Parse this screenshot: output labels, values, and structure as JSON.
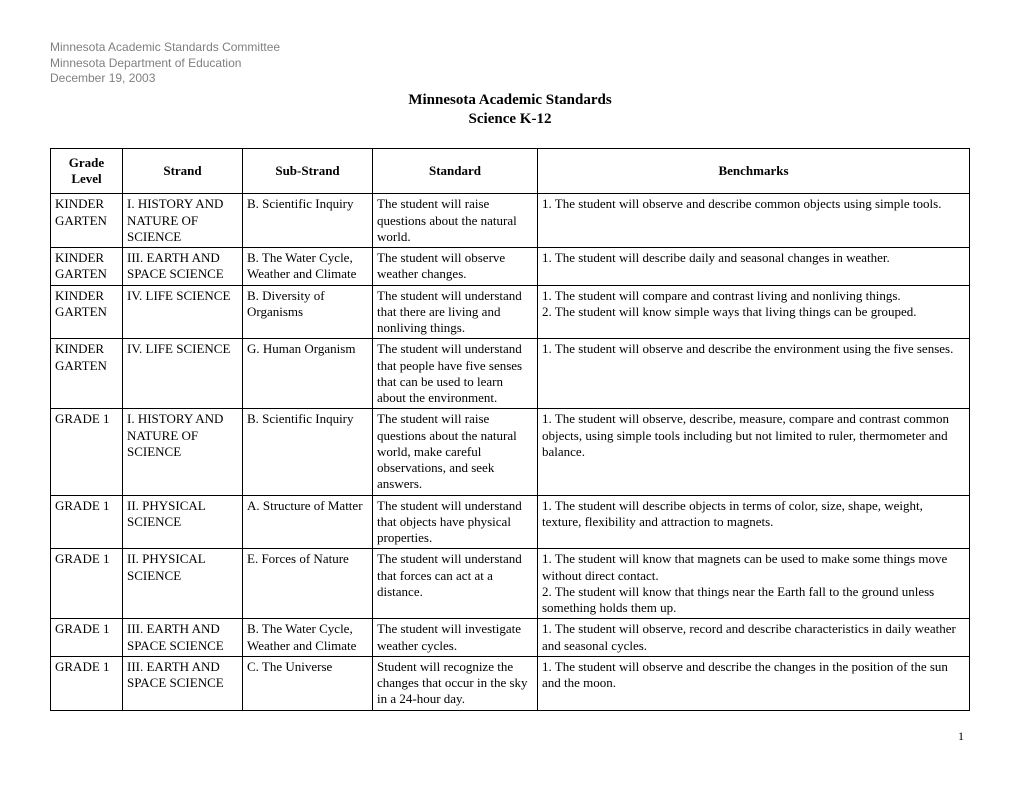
{
  "header": {
    "line1": "Minnesota Academic Standards Committee",
    "line2": "Minnesota Department of Education",
    "line3": "December 19, 2003"
  },
  "title": {
    "line1": "Minnesota Academic Standards",
    "line2": "Science K-12"
  },
  "columns": {
    "grade": "Grade Level",
    "strand": "Strand",
    "substrand": "Sub-Strand",
    "standard": "Standard",
    "benchmarks": "Benchmarks"
  },
  "rows": [
    {
      "grade": "KINDER GARTEN",
      "strand": "I. HISTORY AND NATURE OF SCIENCE",
      "substrand": "B. Scientific Inquiry",
      "standard": "The student will raise questions about the natural world.",
      "benchmarks": "1.  The student will observe and describe common objects using simple tools."
    },
    {
      "grade": "KINDER GARTEN",
      "strand": "III. EARTH AND SPACE SCIENCE",
      "substrand": "B. The Water Cycle, Weather and Climate",
      "standard": "The student will observe weather changes.",
      "benchmarks": "1.  The student will describe daily and seasonal changes in weather."
    },
    {
      "grade": "KINDER GARTEN",
      "strand": "IV. LIFE SCIENCE",
      "substrand": "B. Diversity of Organisms",
      "standard": "The student will understand that there are living and nonliving things.",
      "benchmarks": "1.  The student will compare and contrast living and nonliving things.\n2.  The student will know simple ways that living things can be grouped."
    },
    {
      "grade": "KINDER GARTEN",
      "strand": "IV. LIFE SCIENCE",
      "substrand": "G. Human Organism",
      "standard": "The student will understand that people have five senses that can be used to learn about the environment.",
      "benchmarks": "1.  The student will observe and describe the environment using the five senses."
    },
    {
      "grade": "GRADE 1",
      "strand": "I. HISTORY AND NATURE OF SCIENCE",
      "substrand": "B. Scientific Inquiry",
      "standard": "The student will raise questions about the natural world, make careful observations, and seek answers.",
      "benchmarks": "1.  The student will observe, describe, measure, compare and contrast common objects, using simple tools including but not limited to ruler, thermometer and balance."
    },
    {
      "grade": "GRADE 1",
      "strand": "II. PHYSICAL SCIENCE",
      "substrand": "A. Structure of Matter",
      "standard": "The student will understand that objects have physical properties.",
      "benchmarks": "1.  The student will describe objects in terms of color, size, shape, weight, texture, flexibility and attraction to magnets."
    },
    {
      "grade": "GRADE 1",
      "strand": "II. PHYSICAL SCIENCE",
      "substrand": "E. Forces of Nature",
      "standard": "The student will understand that forces can act at a distance.",
      "benchmarks": "1.  The student will know that magnets can be used to make some things move without direct contact.\n2.  The student will know that things near the Earth fall to the ground unless something holds them up."
    },
    {
      "grade": "GRADE 1",
      "strand": "III. EARTH AND SPACE SCIENCE",
      "substrand": "B. The Water Cycle, Weather and Climate",
      "standard": "The student will investigate weather cycles.",
      "benchmarks": "1.  The student will observe, record and describe characteristics in daily weather and seasonal cycles."
    },
    {
      "grade": "GRADE 1",
      "strand": "III. EARTH AND SPACE SCIENCE",
      "substrand": "C.  The Universe",
      "standard": "Student will recognize the changes that occur in the sky in a 24-hour day.",
      "benchmarks": "1.  The student will observe and describe the changes in the position of the sun and the moon."
    }
  ],
  "page_number": "1"
}
